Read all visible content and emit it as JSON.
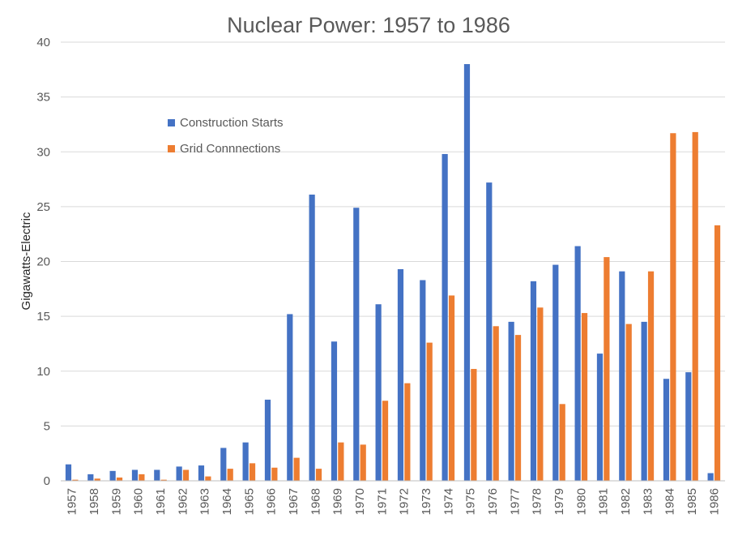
{
  "chart_data": {
    "type": "bar",
    "title": "Nuclear Power: 1957 to 1986",
    "xlabel": "",
    "ylabel": "Gigawatts-Electric",
    "ylim": [
      0,
      40
    ],
    "yticks": [
      0,
      5,
      10,
      15,
      20,
      25,
      30,
      35,
      40
    ],
    "grid": true,
    "legend_position": "top-left (inside plot)",
    "categories": [
      "1957",
      "1958",
      "1959",
      "1960",
      "1961",
      "1962",
      "1963",
      "1964",
      "1965",
      "1966",
      "1967",
      "1968",
      "1969",
      "1970",
      "1971",
      "1972",
      "1973",
      "1974",
      "1975",
      "1976",
      "1977",
      "1978",
      "1979",
      "1980",
      "1981",
      "1982",
      "1983",
      "1984",
      "1985",
      "1986"
    ],
    "series": [
      {
        "name": "Construction Starts",
        "color": "#4472C4",
        "values": [
          1.5,
          0.6,
          0.9,
          1.0,
          1.0,
          1.3,
          1.4,
          3.0,
          3.5,
          7.4,
          15.2,
          26.1,
          12.7,
          24.9,
          16.1,
          19.3,
          18.3,
          29.8,
          38.0,
          27.2,
          14.5,
          18.2,
          19.7,
          21.4,
          11.6,
          19.1,
          14.5,
          9.3,
          9.9,
          0.7
        ]
      },
      {
        "name": "Grid Connnections",
        "color": "#ED7D31",
        "values": [
          0.1,
          0.2,
          0.3,
          0.6,
          0.1,
          1.0,
          0.4,
          1.1,
          1.6,
          1.2,
          2.1,
          1.1,
          3.5,
          3.3,
          7.3,
          8.9,
          12.6,
          16.9,
          10.2,
          14.1,
          13.3,
          15.8,
          7.0,
          15.3,
          20.4,
          14.3,
          19.1,
          31.7,
          31.8,
          23.3
        ]
      }
    ]
  }
}
